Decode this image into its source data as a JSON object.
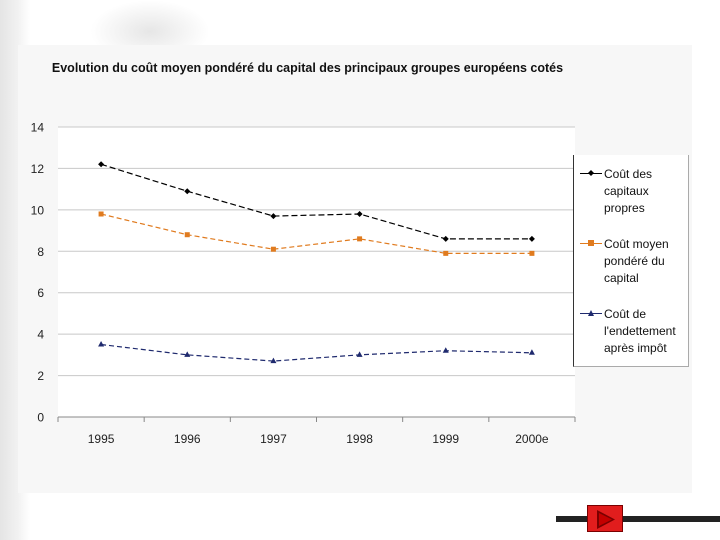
{
  "chart_data": {
    "type": "line",
    "title": "Evolution du coût moyen pondéré du capital des principaux groupes européens cotés",
    "categories": [
      "1995",
      "1996",
      "1997",
      "1998",
      "1999",
      "2000e"
    ],
    "ylim": [
      0,
      14
    ],
    "yticks": [
      0,
      2,
      4,
      6,
      8,
      10,
      12,
      14
    ],
    "grid": true,
    "legend_position": "right",
    "xlabel": "",
    "ylabel": "",
    "series": [
      {
        "name": "Coût des capitaux propres",
        "values": [
          12.2,
          10.9,
          9.7,
          9.8,
          8.6,
          8.6
        ],
        "color": "#000000",
        "marker": "diamond"
      },
      {
        "name": "Coût moyen pondéré du capital",
        "values": [
          9.8,
          8.8,
          8.1,
          8.6,
          7.9,
          7.9
        ],
        "color": "#e07b1f",
        "marker": "square"
      },
      {
        "name": "Coût de l'endettement après impôt",
        "values": [
          3.5,
          3.0,
          2.7,
          3.0,
          3.2,
          3.1
        ],
        "color": "#1f2a6e",
        "marker": "triangle"
      }
    ]
  },
  "nav": {
    "button_icon": "play-icon",
    "accent": "#e11d1d"
  }
}
